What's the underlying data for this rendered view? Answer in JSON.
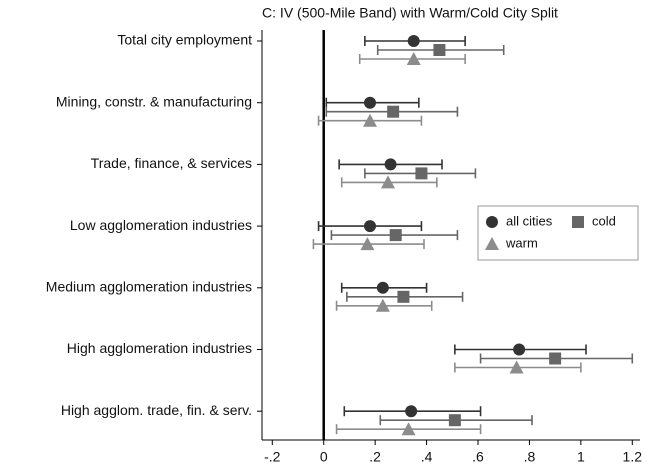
{
  "chart_data": {
    "type": "coefplot",
    "subtitle": "C: IV (500-Mile Band) with Warm/Cold City Split",
    "categories": [
      "Total city employment",
      "Mining, constr. & manufacturing",
      "Trade, finance, & services",
      "Low agglomeration industries",
      "Medium agglomeration industries",
      "High agglomeration industries",
      "High agglom. trade, fin. & serv."
    ],
    "series": [
      {
        "name": "all cities",
        "color": "#333333",
        "marker": "circle",
        "values": [
          0.35,
          0.18,
          0.26,
          0.18,
          0.23,
          0.76,
          0.34
        ],
        "low": [
          0.16,
          0.01,
          0.06,
          -0.02,
          0.07,
          0.51,
          0.08
        ],
        "high": [
          0.55,
          0.37,
          0.46,
          0.38,
          0.4,
          1.02,
          0.61
        ]
      },
      {
        "name": "cold",
        "color": "#666666",
        "marker": "square",
        "values": [
          0.45,
          0.27,
          0.38,
          0.28,
          0.31,
          0.9,
          0.51
        ],
        "low": [
          0.21,
          0.01,
          0.16,
          0.03,
          0.09,
          0.61,
          0.22
        ],
        "high": [
          0.7,
          0.52,
          0.59,
          0.52,
          0.54,
          1.2,
          0.81
        ]
      },
      {
        "name": "warm",
        "color": "#8c8c8c",
        "marker": "triangle",
        "values": [
          0.35,
          0.18,
          0.25,
          0.17,
          0.23,
          0.75,
          0.33
        ],
        "low": [
          0.14,
          -0.02,
          0.07,
          -0.04,
          0.05,
          0.51,
          0.05
        ],
        "high": [
          0.55,
          0.38,
          0.44,
          0.39,
          0.42,
          1.0,
          0.61
        ]
      }
    ],
    "xlim": [
      -0.24,
      1.23
    ],
    "xticks": [
      {
        "value": -0.2,
        "label": "-.2"
      },
      0,
      {
        "value": 0.2,
        "label": ".2"
      },
      {
        "value": 0.4,
        "label": ".4"
      },
      {
        "value": 0.6,
        "label": ".6"
      },
      {
        "value": 0.8,
        "label": ".8"
      },
      1,
      1.2
    ],
    "reference_line": 0,
    "legend_position": "right"
  }
}
